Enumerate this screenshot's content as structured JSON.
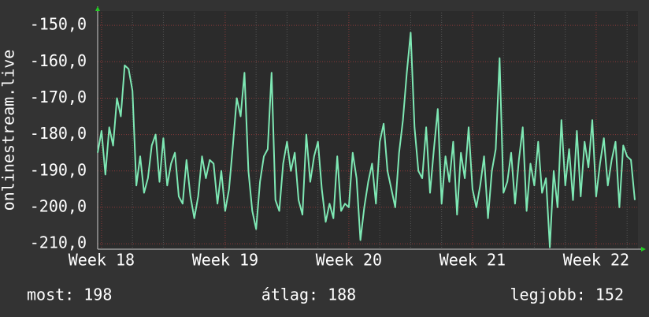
{
  "chart_data": {
    "type": "line",
    "y_axis_label": "onlinestream.live",
    "categories": [
      null,
      "Week 18",
      null,
      null,
      null,
      null,
      null,
      null,
      null,
      null,
      null,
      null,
      null,
      null,
      null,
      null,
      null,
      null,
      null,
      null,
      null,
      null,
      null,
      null,
      null,
      null,
      null,
      null,
      null,
      null,
      null,
      null,
      null,
      "Week 19",
      null,
      null,
      null,
      null,
      null,
      null,
      null,
      null,
      null,
      null,
      null,
      null,
      null,
      null,
      null,
      null,
      null,
      null,
      null,
      null,
      null,
      null,
      null,
      null,
      null,
      null,
      null,
      null,
      null,
      null,
      null,
      "Week 20",
      null,
      null,
      null,
      null,
      null,
      null,
      null,
      null,
      null,
      null,
      null,
      null,
      null,
      null,
      null,
      null,
      null,
      null,
      null,
      null,
      null,
      null,
      null,
      null,
      null,
      null,
      null,
      null,
      null,
      null,
      null,
      "Week 21",
      null,
      null,
      null,
      null,
      null,
      null,
      null,
      null,
      null,
      null,
      null,
      null,
      null,
      null,
      null,
      null,
      null,
      null,
      null,
      null,
      null,
      null,
      null,
      null,
      null,
      null,
      null,
      null,
      null,
      null,
      null,
      "Week 22",
      null,
      null,
      null,
      null,
      null,
      null,
      null,
      null,
      null,
      null
    ],
    "series": [
      {
        "color": "#7ee8b4",
        "values": [
          -185,
          -179,
          -191,
          -178,
          -183,
          -170,
          -175,
          -161,
          -162,
          -168,
          -194,
          -186,
          -196,
          -192,
          -183,
          -180,
          -193,
          -181,
          -194,
          -188,
          -185,
          -197,
          -199,
          -187,
          -197,
          -203,
          -197,
          -186,
          -192,
          -187,
          -188,
          -199,
          -190,
          -201,
          -195,
          -183,
          -170,
          -175,
          -163,
          -190,
          -201,
          -206,
          -193,
          -186,
          -184,
          -163,
          -198,
          -201,
          -188,
          -182,
          -190,
          -185,
          -198,
          -202,
          -180,
          -193,
          -186,
          -182,
          -195,
          -204,
          -199,
          -203,
          -186,
          -201,
          -199,
          -200,
          -185,
          -192,
          -209,
          -200,
          -193,
          -188,
          -199,
          -182,
          -177,
          -190,
          -195,
          -200,
          -185,
          -176,
          -163,
          -152,
          -178,
          -190,
          -192,
          -178,
          -196,
          -184,
          -173,
          -199,
          -186,
          -193,
          -182,
          -202,
          -185,
          -192,
          -178,
          -195,
          -200,
          -194,
          -186,
          -203,
          -190,
          -184,
          -159,
          -196,
          -193,
          -185,
          -199,
          -187,
          -178,
          -201,
          -188,
          -194,
          -182,
          -196,
          -192,
          -211,
          -190,
          -200,
          -176,
          -194,
          -184,
          -198,
          -179,
          -197,
          -182,
          -189,
          -176,
          -197,
          -188,
          -181,
          -194,
          -187,
          -182,
          -200,
          -183,
          -186,
          -187,
          -198
        ]
      }
    ],
    "ylim": [
      -211.5,
      -146.5
    ],
    "yticks": [
      {
        "value": -150,
        "label": "-150,0"
      },
      {
        "value": -160,
        "label": "-160,0"
      },
      {
        "value": -170,
        "label": "-170,0"
      },
      {
        "value": -180,
        "label": "-180,0"
      },
      {
        "value": -190,
        "label": "-190,0"
      },
      {
        "value": -200,
        "label": "-200,0"
      },
      {
        "value": -210,
        "label": "-210,0"
      }
    ],
    "grid": true,
    "stats": [
      "most: 198",
      "átlag: 188",
      "legjobb: 152"
    ]
  }
}
